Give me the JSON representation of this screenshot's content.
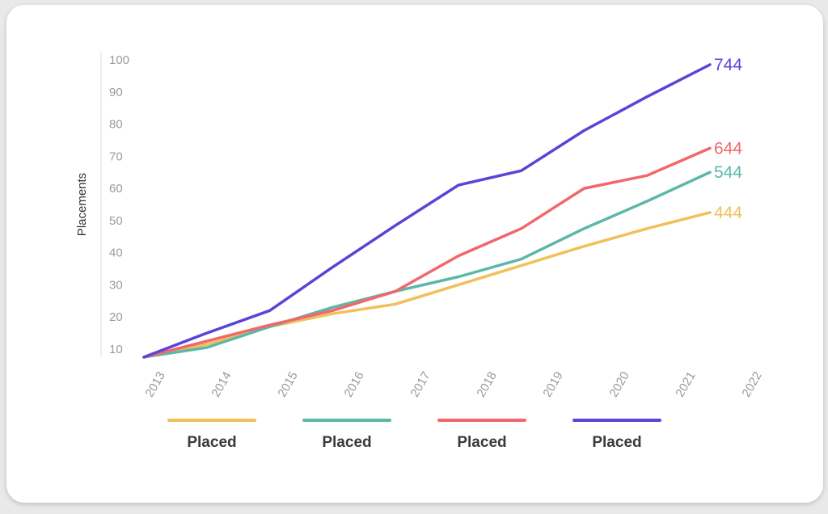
{
  "chart_data": {
    "type": "line",
    "title": "",
    "xlabel": "",
    "ylabel": "Placements",
    "x": [
      "2013",
      "2014",
      "2015",
      "2016",
      "2017",
      "2018",
      "2019",
      "2020",
      "2021",
      "2022"
    ],
    "yticks": [
      10,
      20,
      30,
      40,
      50,
      60,
      70,
      80,
      90,
      100
    ],
    "ylim": [
      7.5,
      101
    ],
    "grid": false,
    "legend_position": "bottom",
    "series": [
      {
        "name": "Placed",
        "color": "#f0c05a",
        "end_label": "444",
        "values": [
          7.5,
          11.5,
          17,
          21,
          24,
          30,
          36,
          42,
          47.5,
          52.5
        ]
      },
      {
        "name": "Placed",
        "color": "#5bb8a8",
        "end_label": "544",
        "values": [
          7.5,
          10.5,
          17,
          23,
          28,
          32.5,
          38,
          47.5,
          56,
          65
        ]
      },
      {
        "name": "Placed",
        "color": "#f2676b",
        "end_label": "644",
        "values": [
          7.5,
          12.5,
          17.5,
          22,
          28,
          39,
          47.5,
          60,
          64,
          72.5
        ]
      },
      {
        "name": "Placed",
        "color": "#5a44d8",
        "end_label": "744",
        "values": [
          7.5,
          15,
          22,
          35.5,
          48.5,
          61,
          65.5,
          78,
          88.5,
          98.5
        ]
      }
    ]
  }
}
